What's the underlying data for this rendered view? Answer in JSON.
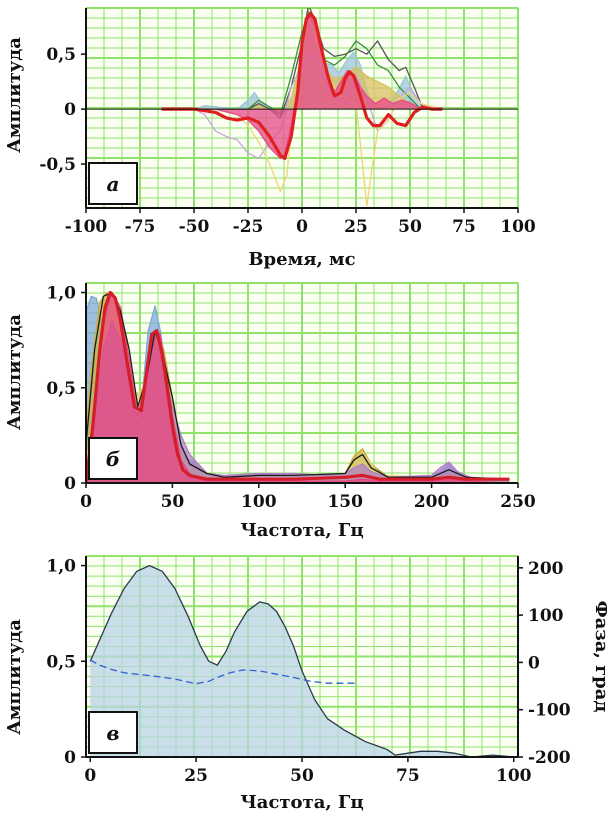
{
  "chart_data": [
    {
      "id": "a",
      "type": "line",
      "panel_label": "а",
      "xlabel": "Время, мс",
      "ylabel": "Амплитуда",
      "xlim": [
        -100,
        100
      ],
      "ylim": [
        -0.9,
        0.92
      ],
      "xticks": [
        -100,
        -75,
        -50,
        -25,
        0,
        25,
        50,
        75,
        100
      ],
      "xtick_labels": [
        "-100",
        "-75",
        "-50",
        "-25",
        "0",
        "25",
        "50",
        "75",
        "100"
      ],
      "yticks": [
        0.5,
        0,
        -0.5
      ],
      "ytick_labels": [
        "0,5",
        "0",
        "-0,5"
      ],
      "grid": true,
      "series": [
        {
          "color": "#9fc4d8",
          "fill": true,
          "x": [
            -65,
            -50,
            -45,
            -30,
            -25,
            -22,
            -19,
            -15,
            -8,
            -3,
            0,
            3,
            6,
            10,
            14,
            17,
            21,
            24,
            27,
            31,
            36,
            40,
            44,
            48,
            52,
            57,
            65
          ],
          "y": [
            0,
            0,
            0.03,
            0,
            0.08,
            0.15,
            0.06,
            0,
            -0.05,
            0.15,
            0.55,
            0.88,
            0.7,
            0.42,
            0.4,
            0.33,
            0.45,
            0.52,
            0.4,
            0.1,
            0,
            0.05,
            0.15,
            0.3,
            0.12,
            0,
            0
          ]
        },
        {
          "color": "#d8c060",
          "fill": true,
          "x": [
            -65,
            -40,
            -25,
            -20,
            -15,
            -10,
            -5,
            0,
            3,
            6,
            10,
            15,
            20,
            25,
            30,
            35,
            40,
            45,
            50,
            55,
            65
          ],
          "y": [
            0,
            0,
            0,
            0.05,
            0,
            -0.05,
            0.1,
            0.5,
            0.9,
            0.75,
            0.35,
            0.28,
            0.3,
            0.38,
            0.3,
            0.25,
            0.2,
            0.12,
            0.05,
            0,
            0
          ]
        },
        {
          "color": "#555555",
          "fill": false,
          "x": [
            -65,
            -40,
            -25,
            -20,
            -15,
            -10,
            -5,
            0,
            3,
            6,
            10,
            15,
            20,
            25,
            30,
            35,
            40,
            45,
            48,
            52,
            56,
            65
          ],
          "y": [
            0,
            0,
            0,
            0.05,
            0,
            -0.08,
            0.2,
            0.6,
            0.95,
            0.8,
            0.55,
            0.48,
            0.5,
            0.55,
            0.5,
            0.62,
            0.45,
            0.35,
            0.38,
            0.2,
            0,
            0
          ]
        },
        {
          "color": "#3a8f3a",
          "fill": false,
          "x": [
            -65,
            -40,
            -25,
            -20,
            -15,
            -10,
            -5,
            0,
            3,
            6,
            10,
            15,
            20,
            25,
            30,
            35,
            40,
            45,
            50,
            55,
            65
          ],
          "y": [
            0,
            0,
            0,
            0.08,
            0.02,
            -0.05,
            0.3,
            0.7,
            0.88,
            0.7,
            0.45,
            0.4,
            0.48,
            0.62,
            0.55,
            0.4,
            0.35,
            0.2,
            0.1,
            0,
            0
          ]
        },
        {
          "color": "#c9a2e0",
          "fill": false,
          "x": [
            -65,
            -50,
            -45,
            -40,
            -35,
            -30,
            -25,
            -20,
            -15,
            -10,
            -5,
            0,
            5,
            10,
            15,
            20,
            25,
            30,
            35,
            40,
            45,
            50,
            55,
            65
          ],
          "y": [
            0,
            0,
            -0.05,
            -0.2,
            -0.25,
            -0.28,
            -0.4,
            -0.45,
            -0.3,
            -0.2,
            0.2,
            0.4,
            0.5,
            0.3,
            0.1,
            0.05,
            0.3,
            0.1,
            -0.2,
            -0.1,
            0.1,
            0.2,
            0.05,
            0
          ]
        },
        {
          "color": "#f3d27a",
          "fill": false,
          "x": [
            -65,
            -40,
            -30,
            -25,
            -20,
            -15,
            -10,
            -7,
            -5,
            -2,
            0,
            3,
            6,
            10,
            15,
            20,
            25,
            28,
            30,
            32,
            35,
            40,
            45,
            50,
            55,
            65
          ],
          "y": [
            0,
            0,
            -0.05,
            -0.15,
            -0.3,
            -0.5,
            -0.75,
            -0.6,
            -0.2,
            0.2,
            0.5,
            0.85,
            0.7,
            0.4,
            0.2,
            0.1,
            0.05,
            -0.5,
            -0.88,
            -0.6,
            -0.2,
            -0.1,
            0.1,
            0.15,
            0.05,
            0
          ]
        },
        {
          "color": "#e84a8a",
          "fill": true,
          "x": [
            -65,
            -40,
            -30,
            -25,
            -20,
            -15,
            -10,
            -8,
            -5,
            -2,
            0,
            2,
            4,
            6,
            9,
            12,
            15,
            18,
            21,
            24,
            27,
            30,
            34,
            38,
            42,
            46,
            50,
            55,
            65
          ],
          "y": [
            0,
            0,
            -0.05,
            -0.1,
            -0.2,
            -0.35,
            -0.45,
            -0.42,
            -0.15,
            0.2,
            0.55,
            0.8,
            0.85,
            0.78,
            0.55,
            0.3,
            0.15,
            0.25,
            0.35,
            0.32,
            0.2,
            0.12,
            0.05,
            0.1,
            0.05,
            0.08,
            0.06,
            0,
            0
          ]
        },
        {
          "color": "#e02020",
          "fill": false,
          "x": [
            -65,
            -50,
            -40,
            -35,
            -30,
            -25,
            -20,
            -15,
            -10,
            -8,
            -5,
            -2,
            0,
            2,
            4,
            6,
            9,
            12,
            15,
            18,
            20,
            22,
            24,
            27,
            30,
            33,
            36,
            40,
            44,
            48,
            52,
            56,
            60,
            65
          ],
          "y": [
            0,
            0,
            -0.03,
            -0.08,
            -0.1,
            -0.08,
            -0.12,
            -0.25,
            -0.42,
            -0.45,
            -0.25,
            0.15,
            0.6,
            0.82,
            0.87,
            0.82,
            0.55,
            0.3,
            0.12,
            0.15,
            0.28,
            0.34,
            0.3,
            0.12,
            -0.08,
            -0.15,
            -0.15,
            -0.05,
            -0.13,
            -0.15,
            -0.03,
            0.02,
            0,
            0
          ]
        }
      ]
    },
    {
      "id": "b",
      "type": "area",
      "panel_label": "б",
      "xlabel": "Частота, Гц",
      "ylabel": "Амплитуда",
      "xlim": [
        0,
        250
      ],
      "ylim": [
        0,
        1.05
      ],
      "xticks": [
        0,
        50,
        100,
        150,
        200,
        250
      ],
      "xtick_labels": [
        "0",
        "50",
        "100",
        "150",
        "200",
        "250"
      ],
      "yticks": [
        1.0,
        0.5,
        0
      ],
      "ytick_labels": [
        "1,0",
        "0,5",
        "0"
      ],
      "grid": true,
      "series": [
        {
          "color": "#7fa8d8",
          "fill": true,
          "x": [
            0,
            3,
            6,
            10,
            15,
            20,
            25,
            30,
            33,
            36,
            40,
            43,
            46,
            50,
            55,
            60,
            65,
            70,
            75,
            100,
            125,
            150,
            155,
            160,
            165,
            175,
            200,
            205,
            210,
            215,
            225,
            245
          ],
          "y": [
            0.9,
            0.98,
            0.97,
            0.8,
            0.55,
            0.5,
            0.4,
            0.2,
            0.5,
            0.8,
            0.93,
            0.8,
            0.6,
            0.3,
            0.15,
            0.12,
            0.1,
            0.05,
            0.03,
            0.05,
            0.03,
            0.05,
            0.12,
            0.14,
            0.08,
            0.03,
            0.03,
            0.06,
            0.1,
            0.05,
            0.02,
            0.02
          ]
        },
        {
          "color": "#c9b040",
          "fill": true,
          "x": [
            0,
            3,
            8,
            12,
            16,
            20,
            25,
            30,
            35,
            40,
            45,
            50,
            55,
            60,
            65,
            70,
            75,
            100,
            125,
            150,
            155,
            160,
            165,
            175,
            200,
            210,
            225,
            245
          ],
          "y": [
            0.25,
            0.6,
            0.95,
            1.0,
            0.98,
            0.85,
            0.6,
            0.3,
            0.55,
            0.8,
            0.7,
            0.45,
            0.2,
            0.1,
            0.08,
            0.05,
            0.03,
            0.04,
            0.03,
            0.05,
            0.14,
            0.18,
            0.1,
            0.03,
            0.03,
            0.05,
            0.02,
            0.02
          ]
        },
        {
          "color": "#e0d070",
          "fill": true,
          "x": [
            0,
            5,
            10,
            14,
            18,
            22,
            28,
            33,
            38,
            42,
            46,
            50,
            55,
            60,
            70,
            100,
            150,
            160,
            170,
            200,
            245
          ],
          "y": [
            0.1,
            0.4,
            0.85,
            0.97,
            0.9,
            0.7,
            0.45,
            0.5,
            0.72,
            0.68,
            0.52,
            0.4,
            0.15,
            0.08,
            0.04,
            0.03,
            0.04,
            0.16,
            0.04,
            0.03,
            0.02
          ]
        },
        {
          "color": "#b080c8",
          "fill": true,
          "x": [
            0,
            5,
            10,
            15,
            20,
            25,
            30,
            35,
            40,
            45,
            50,
            55,
            60,
            65,
            70,
            80,
            100,
            120,
            140,
            150,
            155,
            160,
            165,
            175,
            200,
            205,
            210,
            215,
            225,
            245
          ],
          "y": [
            0.05,
            0.3,
            0.7,
            0.85,
            0.75,
            0.55,
            0.3,
            0.5,
            0.75,
            0.6,
            0.4,
            0.25,
            0.15,
            0.1,
            0.05,
            0.04,
            0.05,
            0.05,
            0.04,
            0.05,
            0.08,
            0.1,
            0.06,
            0.03,
            0.04,
            0.08,
            0.11,
            0.06,
            0.02,
            0.02
          ]
        },
        {
          "color": "#e8457f",
          "fill": true,
          "x": [
            0,
            5,
            10,
            15,
            20,
            25,
            30,
            35,
            40,
            43,
            47,
            50,
            55,
            60,
            65,
            70,
            80,
            100,
            150,
            160,
            170,
            200,
            210,
            220,
            245
          ],
          "y": [
            0,
            0.45,
            0.85,
            1.0,
            0.92,
            0.65,
            0.35,
            0.55,
            0.8,
            0.78,
            0.55,
            0.35,
            0.12,
            0.05,
            0.02,
            0.01,
            0.01,
            0.01,
            0.01,
            0.02,
            0.01,
            0.01,
            0.02,
            0.01,
            0
          ]
        },
        {
          "color": "#1a1a1a",
          "fill": false,
          "x": [
            0,
            5,
            10,
            15,
            20,
            25,
            30,
            35,
            40,
            45,
            50,
            55,
            60,
            70,
            80,
            100,
            120,
            150,
            155,
            160,
            165,
            175,
            200,
            210,
            220,
            245
          ],
          "y": [
            0.2,
            0.7,
            0.98,
            1.0,
            0.9,
            0.7,
            0.4,
            0.55,
            0.8,
            0.65,
            0.45,
            0.2,
            0.1,
            0.05,
            0.03,
            0.04,
            0.04,
            0.05,
            0.12,
            0.15,
            0.08,
            0.03,
            0.03,
            0.07,
            0.03,
            0.02
          ]
        },
        {
          "color": "#d41f2a",
          "fill": false,
          "x": [
            0,
            4,
            8,
            11,
            14,
            17,
            20,
            24,
            28,
            32,
            35,
            38,
            41,
            44,
            47,
            50,
            53,
            56,
            60,
            65,
            70,
            80,
            100,
            120,
            150,
            160,
            170,
            200,
            210,
            220,
            245
          ],
          "y": [
            0,
            0.3,
            0.7,
            0.92,
            1.0,
            0.97,
            0.85,
            0.62,
            0.4,
            0.38,
            0.58,
            0.78,
            0.8,
            0.68,
            0.5,
            0.3,
            0.15,
            0.07,
            0.04,
            0.03,
            0.02,
            0.02,
            0.02,
            0.02,
            0.03,
            0.04,
            0.02,
            0.02,
            0.03,
            0.02,
            0.02
          ]
        }
      ]
    },
    {
      "id": "v",
      "type": "area",
      "panel_label": "в",
      "xlabel": "Частота, Гц",
      "ylabel": "Амплитуда",
      "y2label": "Фаза, град",
      "xlim": [
        -1,
        101
      ],
      "ylim": [
        0,
        1.05
      ],
      "y2lim": [
        -200,
        225
      ],
      "xticks": [
        0,
        25,
        50,
        75,
        100
      ],
      "xtick_labels": [
        "0",
        "25",
        "50",
        "75",
        "100"
      ],
      "yticks": [
        1.0,
        0.5,
        0
      ],
      "ytick_labels": [
        "1,0",
        "0,5",
        "0"
      ],
      "y2ticks": [
        200,
        100,
        0,
        -100,
        -200
      ],
      "y2tick_labels": [
        "200",
        "100",
        "0",
        "-100",
        "-200"
      ],
      "grid": true,
      "series": [
        {
          "axis": "left",
          "color": "#2a3a4a",
          "fill_color": "#b9d3e6",
          "fill": true,
          "x": [
            0,
            2,
            5,
            8,
            11,
            14,
            17,
            20,
            23,
            26,
            28,
            30,
            32,
            34,
            37,
            40,
            42,
            44,
            46,
            48,
            50,
            53,
            56,
            60,
            65,
            70,
            72,
            75,
            78,
            82,
            86,
            90,
            95,
            100
          ],
          "y": [
            0.5,
            0.6,
            0.75,
            0.88,
            0.97,
            1.0,
            0.97,
            0.88,
            0.74,
            0.58,
            0.5,
            0.48,
            0.55,
            0.65,
            0.76,
            0.81,
            0.8,
            0.76,
            0.68,
            0.58,
            0.45,
            0.3,
            0.2,
            0.14,
            0.08,
            0.04,
            0.01,
            0.02,
            0.03,
            0.03,
            0.02,
            0,
            0.01,
            0
          ]
        },
        {
          "axis": "right",
          "color": "#3060d0",
          "fill": false,
          "dashed": true,
          "x": [
            0,
            2,
            5,
            8,
            12,
            16,
            20,
            25,
            28,
            30,
            33,
            36,
            40,
            44,
            48,
            52,
            56,
            60,
            63
          ],
          "y": [
            5,
            -5,
            -15,
            -22,
            -26,
            -30,
            -35,
            -45,
            -40,
            -32,
            -22,
            -16,
            -18,
            -25,
            -32,
            -40,
            -44,
            -44,
            -44
          ]
        }
      ]
    }
  ]
}
